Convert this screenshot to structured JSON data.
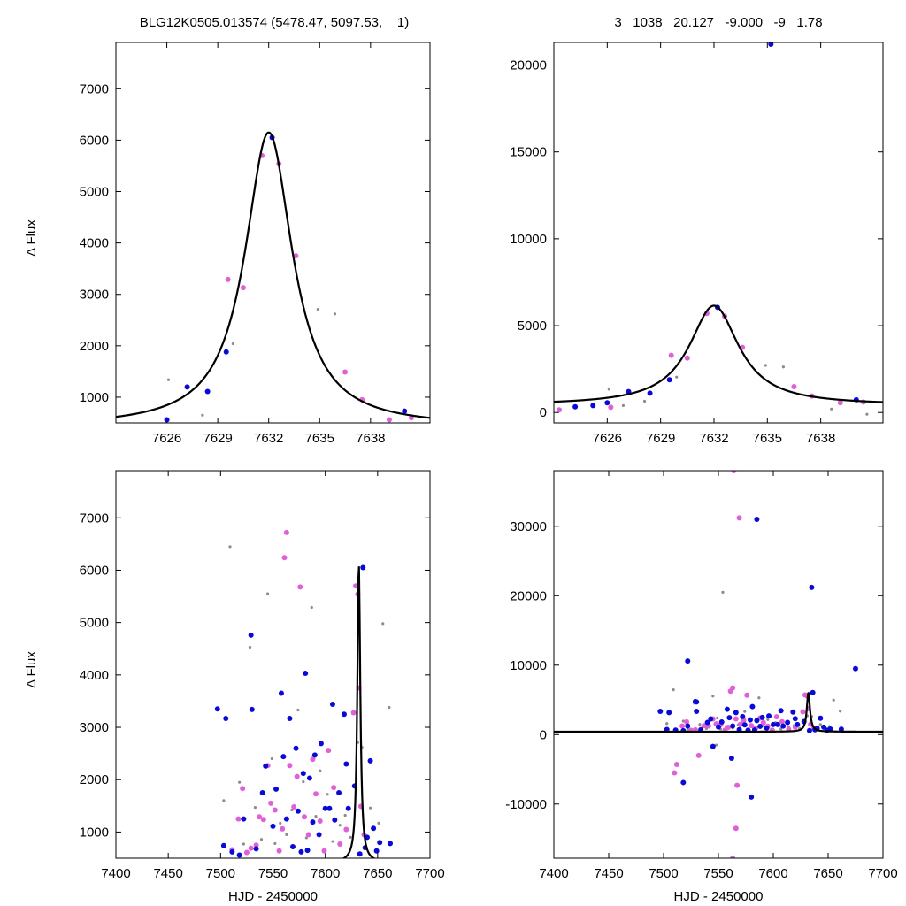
{
  "header": {
    "left": "BLG12K0505.013574 (5478.47, 5097.53,    1)",
    "right": "3   1038   20.127   -9.000   -9   1.78"
  },
  "colors": {
    "curve": "#000000",
    "blue": "#0a0ad8",
    "magenta": "#e060d8",
    "gray": "#8c8c8c"
  },
  "chart_data": [
    {
      "type": "scatter",
      "xlim": [
        7623,
        7641.5
      ],
      "ylim": [
        500,
        7900
      ],
      "xticks": [
        7626,
        7629,
        7632,
        7635,
        7638
      ],
      "yticks": [
        1000,
        2000,
        3000,
        4000,
        5000,
        6000,
        7000
      ],
      "xlabel": "",
      "ylabel": "Δ Flux",
      "model": {
        "t0": 7632.0,
        "peak": 6150,
        "baseline": 420,
        "width": 1.7
      },
      "series": [
        {
          "color": "blue",
          "size": 3,
          "x": [
            7626.0,
            7627.2,
            7628.4,
            7629.5,
            7632.2,
            7640.0
          ],
          "y": [
            560,
            1200,
            1110,
            1880,
            6050,
            730
          ]
        },
        {
          "color": "magenta",
          "size": 3,
          "x": [
            7629.6,
            7630.5,
            7631.6,
            7632.6,
            7633.6,
            7636.5,
            7637.5,
            7639.1,
            7640.4
          ],
          "y": [
            3290,
            3130,
            5700,
            5540,
            3750,
            1490,
            950,
            560,
            600
          ]
        },
        {
          "color": "gray",
          "size": 1.6,
          "x": [
            7626.1,
            7628.1,
            7629.9,
            7634.9,
            7635.9
          ],
          "y": [
            1340,
            650,
            2040,
            2710,
            2620
          ]
        }
      ]
    },
    {
      "type": "scatter",
      "xlim": [
        7623,
        7641.5
      ],
      "ylim": [
        -600,
        21300
      ],
      "xticks": [
        7626,
        7629,
        7632,
        7635,
        7638
      ],
      "yticks": [
        0,
        5000,
        10000,
        15000,
        20000
      ],
      "xlabel": "",
      "ylabel": "",
      "model": {
        "t0": 7632.0,
        "peak": 6150,
        "baseline": 420,
        "width": 1.7
      },
      "series": [
        {
          "color": "blue",
          "size": 3,
          "x": [
            7624.2,
            7625.2,
            7626.0,
            7627.2,
            7628.4,
            7629.5,
            7632.2,
            7635.2,
            7640.0
          ],
          "y": [
            330,
            400,
            560,
            1200,
            1110,
            1880,
            6050,
            21200,
            730
          ]
        },
        {
          "color": "magenta",
          "size": 3,
          "x": [
            7623.3,
            7626.2,
            7629.6,
            7630.5,
            7631.6,
            7632.6,
            7633.6,
            7636.5,
            7637.5,
            7639.1,
            7640.4
          ],
          "y": [
            150,
            300,
            3290,
            3130,
            5700,
            5540,
            3750,
            1490,
            950,
            560,
            600
          ]
        },
        {
          "color": "gray",
          "size": 1.6,
          "x": [
            7626.1,
            7626.9,
            7628.1,
            7629.9,
            7634.9,
            7635.9,
            7638.6,
            7640.6
          ],
          "y": [
            1340,
            400,
            650,
            2040,
            2710,
            2620,
            200,
            -100
          ]
        }
      ]
    },
    {
      "type": "scatter",
      "xlim": [
        7400,
        7700
      ],
      "ylim": [
        500,
        7900
      ],
      "xticks": [
        7400,
        7450,
        7500,
        7550,
        7600,
        7650,
        7700
      ],
      "yticks": [
        1000,
        2000,
        3000,
        4000,
        5000,
        6000,
        7000
      ],
      "xlabel": "HJD - 2450000",
      "ylabel": "Δ Flux",
      "model": {
        "t0": 7632.0,
        "peak": 6150,
        "baseline": 420,
        "width": 1.7
      },
      "series": [
        {
          "color": "blue",
          "size": 3,
          "x": [
            7497,
            7503,
            7505,
            7511,
            7518,
            7522,
            7529,
            7530,
            7534,
            7540,
            7543,
            7550,
            7553,
            7558,
            7560,
            7563,
            7566,
            7569,
            7572,
            7574,
            7577,
            7579,
            7581,
            7583,
            7585,
            7588,
            7590,
            7594,
            7596,
            7600,
            7604,
            7607,
            7609,
            7613,
            7618,
            7620,
            7622,
            7628,
            7633,
            7636,
            7638,
            7640,
            7643,
            7646,
            7649,
            7652,
            7662
          ],
          "y": [
            3350,
            740,
            3170,
            620,
            560,
            1250,
            4760,
            3340,
            680,
            1750,
            2260,
            1110,
            1820,
            3650,
            2440,
            1250,
            3170,
            720,
            2600,
            1400,
            620,
            2120,
            4030,
            650,
            2030,
            1190,
            2470,
            950,
            2690,
            1450,
            1450,
            3440,
            1230,
            1750,
            3250,
            2300,
            1450,
            1880,
            580,
            6050,
            700,
            900,
            2360,
            1070,
            640,
            800,
            780
          ]
        },
        {
          "color": "magenta",
          "size": 3,
          "x": [
            7511,
            7517,
            7521,
            7525,
            7529,
            7534,
            7537,
            7541,
            7545,
            7548,
            7552,
            7556,
            7559,
            7561,
            7563,
            7566,
            7570,
            7573,
            7576,
            7580,
            7584,
            7588,
            7591,
            7595,
            7599,
            7603,
            7608,
            7614,
            7620,
            7627,
            7629,
            7631,
            7632,
            7634,
            7637
          ],
          "y": [
            660,
            1250,
            1830,
            610,
            690,
            750,
            1290,
            1240,
            2270,
            1550,
            1420,
            640,
            1060,
            6240,
            6720,
            2270,
            1480,
            2060,
            5680,
            1290,
            950,
            2390,
            1730,
            1210,
            640,
            2560,
            1850,
            770,
            1050,
            3280,
            5700,
            5540,
            3750,
            1490,
            950
          ]
        },
        {
          "color": "gray",
          "size": 1.6,
          "x": [
            7503,
            7509,
            7518,
            7522,
            7528,
            7533,
            7539,
            7545,
            7549,
            7552,
            7557,
            7563,
            7568,
            7574,
            7579,
            7582,
            7587,
            7591,
            7595,
            7602,
            7607,
            7614,
            7619,
            7624,
            7631,
            7635,
            7643,
            7651,
            7655,
            7661
          ],
          "y": [
            1600,
            6450,
            1950,
            770,
            4530,
            1470,
            860,
            5550,
            2400,
            780,
            1170,
            950,
            1420,
            3330,
            1960,
            890,
            5290,
            1300,
            2170,
            1720,
            820,
            1130,
            1320,
            900,
            2710,
            2620,
            1460,
            1170,
            4980,
            3380
          ]
        }
      ]
    },
    {
      "type": "scatter",
      "xlim": [
        7400,
        7700
      ],
      "ylim": [
        -17800,
        38000
      ],
      "xticks": [
        7400,
        7450,
        7500,
        7550,
        7600,
        7650,
        7700
      ],
      "yticks": [
        -10000,
        0,
        10000,
        20000,
        30000
      ],
      "xlabel": "HJD - 2450000",
      "ylabel": "",
      "model": {
        "t0": 7632.0,
        "peak": 6150,
        "baseline": 420,
        "width": 1.7
      },
      "series": [
        {
          "color": "blue",
          "size": 3,
          "x": [
            7497,
            7503,
            7505,
            7511,
            7518,
            7522,
            7529,
            7530,
            7534,
            7540,
            7543,
            7550,
            7553,
            7558,
            7560,
            7563,
            7566,
            7569,
            7572,
            7574,
            7577,
            7579,
            7581,
            7583,
            7585,
            7588,
            7590,
            7594,
            7596,
            7600,
            7604,
            7607,
            7609,
            7613,
            7618,
            7620,
            7622,
            7628,
            7633,
            7636,
            7638,
            7640,
            7643,
            7646,
            7649,
            7652,
            7662,
            7675,
            7522,
            7530,
            7585,
            7635,
            7518,
            7545,
            7562,
            7580
          ],
          "y": [
            3350,
            740,
            3170,
            620,
            560,
            1250,
            4760,
            3340,
            680,
            1750,
            2260,
            1110,
            1820,
            3650,
            2440,
            1250,
            3170,
            720,
            2600,
            1400,
            620,
            2120,
            4030,
            650,
            2030,
            1190,
            2470,
            950,
            2690,
            1450,
            1450,
            3440,
            1230,
            1750,
            3250,
            2300,
            1450,
            1880,
            580,
            6050,
            700,
            900,
            2360,
            1070,
            640,
            800,
            780,
            9500,
            10600,
            4700,
            31000,
            21200,
            -6900,
            -1700,
            -3400,
            -9000
          ]
        },
        {
          "color": "magenta",
          "size": 3,
          "x": [
            7511,
            7517,
            7521,
            7525,
            7529,
            7534,
            7537,
            7541,
            7545,
            7548,
            7552,
            7556,
            7559,
            7561,
            7563,
            7566,
            7570,
            7573,
            7576,
            7580,
            7584,
            7588,
            7591,
            7595,
            7599,
            7603,
            7608,
            7614,
            7620,
            7627,
            7629,
            7631,
            7632,
            7634,
            7637,
            7564,
            7569,
            7510,
            7512,
            7567,
            7563,
            7566,
            7532
          ],
          "y": [
            660,
            1250,
            1830,
            610,
            690,
            750,
            1290,
            1240,
            2270,
            1550,
            1420,
            640,
            1060,
            6240,
            6720,
            2270,
            1480,
            2060,
            5680,
            1290,
            950,
            2390,
            1730,
            1210,
            640,
            2560,
            1850,
            770,
            1050,
            3280,
            5700,
            5540,
            3750,
            1490,
            950,
            38000,
            31200,
            -5500,
            -4300,
            -7300,
            -17800,
            -13500,
            -3000
          ]
        },
        {
          "color": "gray",
          "size": 1.6,
          "x": [
            7503,
            7509,
            7518,
            7522,
            7528,
            7533,
            7539,
            7545,
            7549,
            7552,
            7557,
            7563,
            7568,
            7574,
            7579,
            7582,
            7587,
            7591,
            7595,
            7602,
            7607,
            7614,
            7619,
            7624,
            7631,
            7635,
            7643,
            7651,
            7655,
            7661,
            7554,
            7548
          ],
          "y": [
            1600,
            6450,
            1950,
            770,
            4530,
            1470,
            860,
            5550,
            2400,
            780,
            1170,
            950,
            1420,
            3330,
            1960,
            890,
            5290,
            1300,
            2170,
            1720,
            820,
            1130,
            1320,
            900,
            2710,
            2620,
            1460,
            1170,
            4980,
            3380,
            20500,
            -1500
          ]
        }
      ]
    }
  ]
}
